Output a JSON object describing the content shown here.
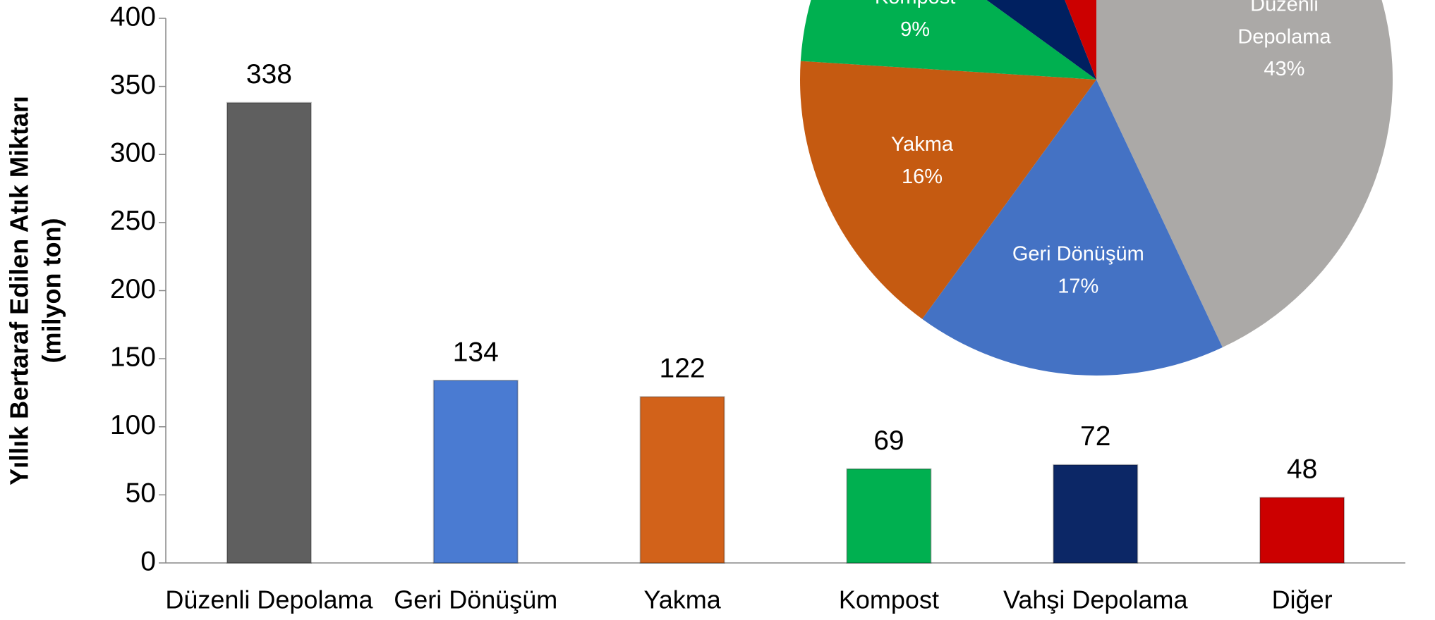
{
  "chart_data": [
    {
      "type": "bar",
      "y_label": [
        "Yıllık Bertaraf Edilen Atık Miktarı",
        "(milyon ton)"
      ],
      "categories": [
        "Düzenli Depolama",
        "Geri Dönüşüm",
        "Yakma",
        "Kompost",
        "Vahşi Depolama",
        "Diğer"
      ],
      "values": [
        338,
        134,
        122,
        69,
        72,
        48
      ],
      "colors": [
        "#5f5f5f",
        "#4a7bd2",
        "#d2621a",
        "#00b050",
        "#0c2766",
        "#cc0000"
      ],
      "ylim": [
        0,
        400
      ],
      "yticks": [
        0,
        50,
        100,
        150,
        200,
        250,
        300,
        350,
        400
      ]
    },
    {
      "type": "pie",
      "categories": [
        "Düzenli Depolama",
        "Geri Dönüşüm",
        "Yakma",
        "Kompost",
        null,
        null
      ],
      "values": [
        43,
        17,
        16,
        9,
        9,
        6
      ],
      "value_labels": [
        "43%",
        "17%",
        "16%",
        "9%",
        null,
        null
      ],
      "colors": [
        "#aba9a7",
        "#4472c4",
        "#c55a11",
        "#00b050",
        "#002060",
        "#cc0000"
      ]
    }
  ]
}
